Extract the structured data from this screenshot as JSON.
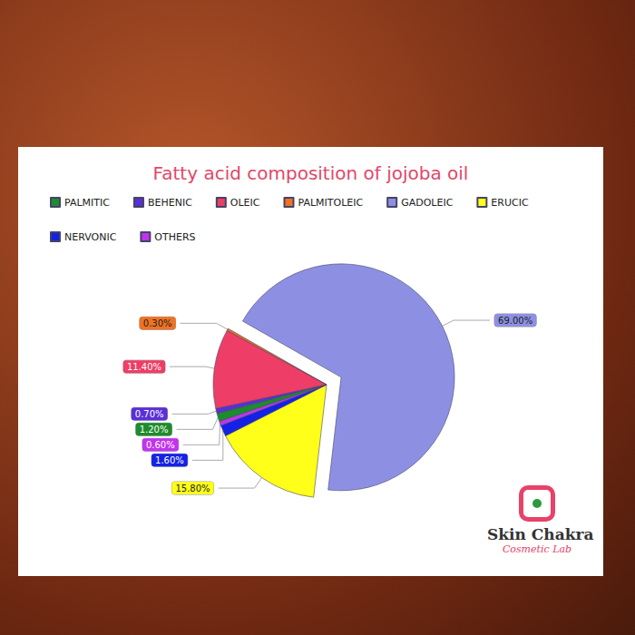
{
  "chart_data": {
    "type": "pie",
    "title": "Fatty acid composition of jojoba oil",
    "categories": [
      "PALMITIC",
      "BEHENIC",
      "OLEIC",
      "PALMITOLEIC",
      "GADOLEIC",
      "ERUCIC",
      "NERVONIC",
      "OTHERS"
    ],
    "values": [
      1.2,
      0.7,
      11.4,
      0.3,
      69,
      15.8,
      1.6,
      0.6
    ],
    "value_labels": [
      "1.20%",
      "0.70%",
      "11.40%",
      "0.30%",
      "69.00%",
      "15.80%",
      "1.60%",
      "0.60%"
    ],
    "colors": [
      "#1c8c2c",
      "#5a2fd8",
      "#ee3d66",
      "#f07223",
      "#8d90e2",
      "#ffff1a",
      "#1422e6",
      "#c233f0"
    ],
    "data_labels": true,
    "legend": "top-left"
  },
  "logo": {
    "name": "Skin Chakra",
    "tagline": "Cosmetic Lab"
  }
}
